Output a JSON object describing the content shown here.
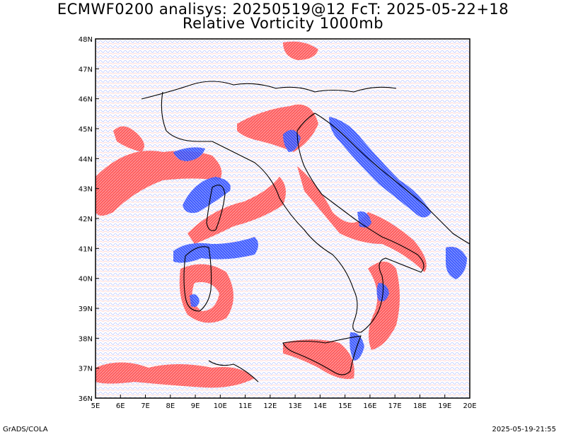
{
  "title_line1": "ECMWF0200 analisys: 20250519@12 FcT: 2025-05-22+18",
  "title_line2": "Relative Vorticity 1000mb",
  "footer_left": "GrADS/COLA",
  "footer_right": "2025-05-19-21:55",
  "lat_labels": [
    "48N",
    "47N",
    "46N",
    "45N",
    "44N",
    "43N",
    "42N",
    "41N",
    "40N",
    "39N",
    "38N",
    "37N",
    "36N"
  ],
  "lon_labels": [
    "5E",
    "6E",
    "7E",
    "8E",
    "9E",
    "10E",
    "11E",
    "12E",
    "13E",
    "14E",
    "15E",
    "16E",
    "17E",
    "18E",
    "19E",
    "20E"
  ],
  "colors": {
    "positive_vorticity": "#ff3b3b",
    "negative_vorticity": "#3050ff",
    "coastline": "#000000",
    "frame": "#000000"
  },
  "map": {
    "projection": "lat-lon",
    "lon_range": [
      5,
      20
    ],
    "lat_range": [
      36,
      48
    ],
    "field": "relative vorticity",
    "level": "1000mb"
  }
}
